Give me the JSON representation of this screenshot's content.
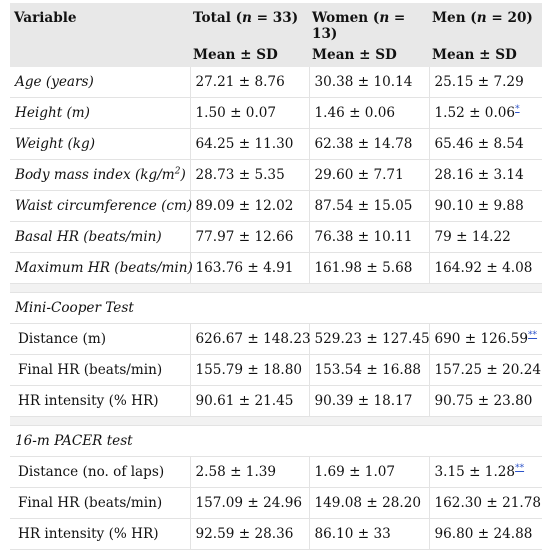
{
  "header": {
    "variable": "Variable",
    "total": "Total (n = 33)",
    "women": "Women (n = 13)",
    "men": "Men (n = 20)",
    "stat": "Mean ± SD"
  },
  "rows": [
    {
      "label": "Age (years)",
      "total": "27.21 ± 8.76",
      "women": "30.38 ± 10.14",
      "men": "25.15 ± 7.29",
      "men_mark": ""
    },
    {
      "label": "Height (m)",
      "total": "1.50 ± 0.07",
      "women": "1.46 ± 0.06",
      "men": "1.52 ± 0.06",
      "men_mark": "*"
    },
    {
      "label": "Weight (kg)",
      "total": "64.25 ± 11.30",
      "women": "62.38 ± 14.78",
      "men": "65.46 ± 8.54",
      "men_mark": ""
    },
    {
      "label": "Body mass index (kg/m²)",
      "total": "28.73 ± 5.35",
      "women": "29.60 ± 7.71",
      "men": "28.16 ± 3.14",
      "men_mark": ""
    },
    {
      "label": "Waist circumference (cm)",
      "total": "89.09 ± 12.02",
      "women": "87.54 ± 15.05",
      "men": "90.10 ± 9.88",
      "men_mark": ""
    },
    {
      "label": "Basal HR (beats/min)",
      "total": "77.97 ± 12.66",
      "women": "76.38 ± 10.11",
      "men": "79 ± 14.22",
      "men_mark": ""
    },
    {
      "label": "Maximum HR (beats/min)",
      "total": "163.76 ± 4.91",
      "women": "161.98 ± 5.68",
      "men": "164.92 ± 4.08",
      "men_mark": ""
    }
  ],
  "section_mini": {
    "title": "Mini-Cooper Test",
    "rows": [
      {
        "label": "Distance (m)",
        "total": "626.67 ± 148.23",
        "women": "529.23 ± 127.45",
        "men": "690 ± 126.59",
        "men_mark": "**"
      },
      {
        "label": "Final HR (beats/min)",
        "total": "155.79 ± 18.80",
        "women": "153.54 ± 16.88",
        "men": "157.25 ± 20.24",
        "men_mark": ""
      },
      {
        "label": "HR intensity (% HR)",
        "total": "90.61 ± 21.45",
        "women": "90.39 ± 18.17",
        "men": "90.75 ± 23.80",
        "men_mark": ""
      }
    ]
  },
  "section_pacer": {
    "title": "16-m PACER test",
    "rows": [
      {
        "label": "Distance (no. of laps)",
        "total": "2.58 ± 1.39",
        "women": "1.69 ± 1.07",
        "men": "3.15 ± 1.28",
        "men_mark": "**"
      },
      {
        "label": "Final HR (beats/min)",
        "total": "157.09 ± 24.96",
        "women": "149.08 ± 28.20",
        "men": "162.30 ± 21.78",
        "men_mark": ""
      },
      {
        "label": "HR intensity (% HR)",
        "total": "92.59 ± 28.36",
        "women": "86.10 ± 33",
        "men": "96.80 ± 24.88",
        "men_mark": ""
      }
    ]
  }
}
